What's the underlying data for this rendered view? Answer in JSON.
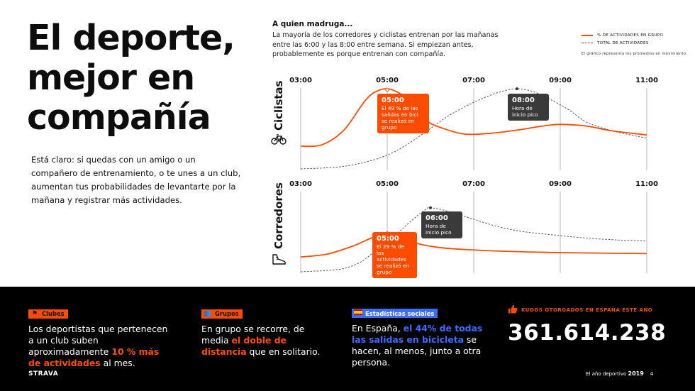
{
  "headline": [
    "El deporte,",
    "mejor en",
    "compañía"
  ],
  "intro": "Está claro: si quedas con un amigo o un compañero de entrenamiento, o te unes a un club, aumentan tus probabilidades de levantarte por la mañana y registrar más actividades.",
  "subhead": "A quien madruga...",
  "subtext": "La mayoría de los corredores y ciclistas entrenan por las mañanas entre las 6:00 y las 8:00 entre semana. Si empiezan antes, probablemente es porque entrenan con compañía.",
  "legend": {
    "group": "% DE ACTIVIDADES EN GRUPO",
    "total": "TOTAL DE ACTIVIDADES",
    "note": "El gráfico representa los promedios en movimiento.",
    "colors": {
      "group": "#fc4c02",
      "total": "#555555"
    }
  },
  "chart_data": [
    {
      "type": "line",
      "title": "Ciclistas",
      "x": [
        "03:00",
        "05:00",
        "07:00",
        "09:00",
        "11:00"
      ],
      "series": [
        {
          "name": "% DE ACTIVIDADES EN GRUPO",
          "points": [
            [
              3.0,
              0.28
            ],
            [
              3.5,
              0.3
            ],
            [
              4.0,
              0.48
            ],
            [
              4.5,
              0.85
            ],
            [
              4.8,
              0.97
            ],
            [
              5.1,
              0.98
            ],
            [
              5.5,
              0.85
            ],
            [
              5.9,
              0.6
            ],
            [
              6.3,
              0.5
            ],
            [
              6.8,
              0.43
            ],
            [
              7.4,
              0.44
            ],
            [
              8.0,
              0.48
            ],
            [
              8.6,
              0.53
            ],
            [
              9.0,
              0.55
            ],
            [
              9.6,
              0.53
            ],
            [
              10.2,
              0.47
            ],
            [
              11.0,
              0.42
            ]
          ]
        },
        {
          "name": "TOTAL DE ACTIVIDADES",
          "points": [
            [
              3.0,
              0.0
            ],
            [
              3.8,
              0.02
            ],
            [
              4.3,
              0.06
            ],
            [
              4.8,
              0.13
            ],
            [
              5.2,
              0.22
            ],
            [
              5.6,
              0.35
            ],
            [
              6.0,
              0.5
            ],
            [
              6.4,
              0.65
            ],
            [
              6.8,
              0.77
            ],
            [
              7.2,
              0.87
            ],
            [
              7.6,
              0.95
            ],
            [
              8.0,
              0.99
            ],
            [
              8.4,
              0.95
            ],
            [
              8.8,
              0.85
            ],
            [
              9.2,
              0.73
            ],
            [
              9.6,
              0.58
            ],
            [
              10.2,
              0.47
            ],
            [
              11.0,
              0.38
            ]
          ]
        }
      ],
      "callouts": [
        {
          "time": "05:00",
          "title": "05:00",
          "text": "El 49 % de las salidas en bici se realizó en grupo"
        },
        {
          "time": "08:00",
          "title": "08:00",
          "text": "Hora de inicio pico"
        }
      ]
    },
    {
      "type": "line",
      "title": "Corredores",
      "x": [
        "03:00",
        "05:00",
        "07:00",
        "09:00",
        "11:00"
      ],
      "series": [
        {
          "name": "% DE ACTIVIDADES EN GRUPO",
          "points": [
            [
              3.0,
              0.22
            ],
            [
              3.6,
              0.26
            ],
            [
              4.2,
              0.38
            ],
            [
              4.7,
              0.52
            ],
            [
              5.0,
              0.57
            ],
            [
              5.3,
              0.52
            ],
            [
              5.7,
              0.42
            ],
            [
              6.2,
              0.36
            ],
            [
              6.8,
              0.33
            ],
            [
              7.5,
              0.31
            ],
            [
              8.5,
              0.29
            ],
            [
              9.5,
              0.28
            ],
            [
              11.0,
              0.27
            ]
          ]
        },
        {
          "name": "TOTAL DE ACTIVIDADES",
          "points": [
            [
              3.0,
              0.0
            ],
            [
              3.6,
              0.02
            ],
            [
              4.0,
              0.05
            ],
            [
              4.4,
              0.15
            ],
            [
              4.8,
              0.35
            ],
            [
              5.2,
              0.55
            ],
            [
              5.6,
              0.78
            ],
            [
              5.9,
              0.93
            ],
            [
              6.0,
              0.95
            ],
            [
              6.4,
              0.9
            ],
            [
              6.9,
              0.8
            ],
            [
              7.5,
              0.68
            ],
            [
              8.1,
              0.6
            ],
            [
              8.8,
              0.55
            ],
            [
              9.6,
              0.5
            ],
            [
              10.4,
              0.47
            ],
            [
              11.0,
              0.46
            ]
          ]
        }
      ],
      "callouts": [
        {
          "time": "05:00",
          "title": "05:00",
          "text": "El 29 % de las actividades se realizó en grupo"
        },
        {
          "time": "06:00",
          "title": "06:00",
          "text": "Hora de inicio pico"
        }
      ]
    }
  ],
  "footer": {
    "clubs": {
      "tag": "Clubes",
      "icon": "flag-icon",
      "pre": "Los deportistas que pertenecen a un club suben aproximadamente ",
      "highlight": "10 % más de actividades",
      "post": " al mes."
    },
    "groups": {
      "tag": "Grupos",
      "icon": "people-icon",
      "pre": "En grupo se recorre, de media ",
      "highlight": "el doble de distancia",
      "post": " que en solitario."
    },
    "social": {
      "tag": "Estadísticas sociales",
      "icon": "spain-flag-icon",
      "pre": "En España, ",
      "highlight": "el 44% de todas las salidas en bicicleta",
      "post": " se hacen, al menos, junto a otra persona."
    },
    "kudos": {
      "label": "KUDOS OTORGADOS EN ESPAÑA ESTE AÑO",
      "icon": "thumbs-up-icon",
      "value": "361.614.238"
    },
    "brand": "STRAVA",
    "report": "El año deportivo",
    "year": "2019",
    "page": "4",
    "colors": {
      "orange": "#fc4c02",
      "blue": "#3b6cff",
      "black": "#000000"
    }
  }
}
